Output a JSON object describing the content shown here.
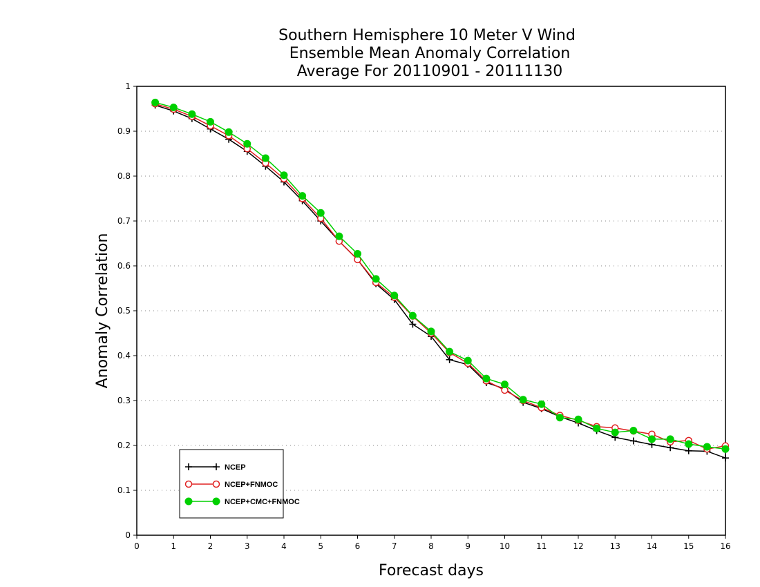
{
  "chart_data": {
    "type": "line",
    "title": "Southern Hemisphere 10 Meter V Wind",
    "subtitle": [
      "Ensemble Mean Anomaly Correlation",
      "Average For 20110901 - 20111130"
    ],
    "xlabel": "Forecast days",
    "ylabel": "Anomaly Correlation",
    "xlim": [
      0,
      16
    ],
    "ylim": [
      0,
      1
    ],
    "x_ticks": [
      "0",
      "1",
      "2",
      "3",
      "4",
      "5",
      "6",
      "7",
      "8",
      "9",
      "10",
      "11",
      "12",
      "13",
      "14",
      "15",
      "16"
    ],
    "y_ticks": [
      "0",
      "0.1",
      "0.2",
      "0.3",
      "0.4",
      "0.5",
      "0.6",
      "0.7",
      "0.8",
      "0.9",
      "1"
    ],
    "grid": "horizontal dotted",
    "legend_position": "bottom-left",
    "x": [
      0.5,
      1,
      1.5,
      2,
      2.5,
      3,
      3.5,
      4,
      4.5,
      5,
      5.5,
      6,
      6.5,
      7,
      7.5,
      8,
      8.5,
      9,
      9.5,
      10,
      10.5,
      11,
      11.5,
      12,
      12.5,
      13,
      13.5,
      14,
      14.5,
      15,
      15.5,
      16
    ],
    "series": [
      {
        "name": "NCEP",
        "color": "#000000",
        "marker": "plus",
        "values": [
          0.958,
          0.945,
          0.928,
          0.905,
          0.882,
          0.855,
          0.822,
          0.787,
          0.745,
          0.7,
          0.655,
          0.614,
          0.56,
          0.525,
          0.47,
          0.443,
          0.391,
          0.38,
          0.34,
          0.326,
          0.296,
          0.282,
          0.264,
          0.25,
          0.233,
          0.218,
          0.21,
          0.202,
          0.195,
          0.188,
          0.187,
          0.172
        ]
      },
      {
        "name": "NCEP+FNMOC",
        "color": "#e02020",
        "marker": "open-circle",
        "values": [
          0.961,
          0.949,
          0.933,
          0.912,
          0.89,
          0.861,
          0.829,
          0.794,
          0.75,
          0.706,
          0.655,
          0.614,
          0.563,
          0.53,
          0.488,
          0.45,
          0.407,
          0.383,
          0.344,
          0.323,
          0.3,
          0.284,
          0.267,
          0.256,
          0.242,
          0.239,
          0.232,
          0.225,
          0.208,
          0.211,
          0.192,
          0.199
        ]
      },
      {
        "name": "NCEP+CMC+FNMOC",
        "color": "#00d000",
        "marker": "filled-circle",
        "values": [
          0.964,
          0.953,
          0.938,
          0.921,
          0.898,
          0.872,
          0.84,
          0.802,
          0.756,
          0.718,
          0.666,
          0.627,
          0.571,
          0.534,
          0.489,
          0.454,
          0.409,
          0.389,
          0.349,
          0.336,
          0.302,
          0.292,
          0.262,
          0.258,
          0.238,
          0.229,
          0.233,
          0.214,
          0.214,
          0.203,
          0.197,
          0.192
        ]
      }
    ]
  }
}
